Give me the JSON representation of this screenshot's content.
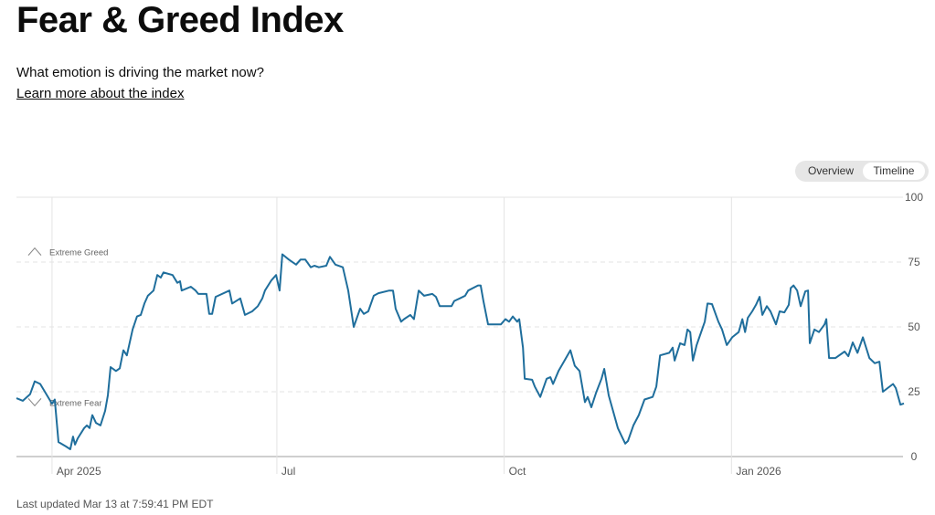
{
  "header": {
    "title": "Fear & Greed Index",
    "subtitle": "What emotion is driving the market now?",
    "learn_link": "Learn more about the index"
  },
  "toggle": {
    "options": [
      "Overview",
      "Timeline"
    ],
    "selected": "Timeline"
  },
  "footer": {
    "updated": "Last updated Mar 13 at 7:59:41 PM EDT"
  },
  "colors": {
    "line": "#1f6e9c",
    "grid": "#e3e3e3",
    "axis": "#555555"
  },
  "chart_data": {
    "type": "line",
    "title": "Fear & Greed Index",
    "x_unit": "days since Apr 1 2025",
    "xlim": [
      -14.4,
      344.8
    ],
    "ylim": [
      0,
      100
    ],
    "y_ticks": [
      0,
      25,
      50,
      75,
      100
    ],
    "x_ticks": [
      {
        "day": 0,
        "label": "Apr 2025"
      },
      {
        "day": 91,
        "label": "Jul"
      },
      {
        "day": 183,
        "label": "Oct"
      },
      {
        "day": 275,
        "label": "Jan 2026"
      }
    ],
    "annotations": [
      {
        "label": "Extreme Greed",
        "value": 79,
        "icon": "chevron-up"
      },
      {
        "label": "Extreme Fear",
        "value": 21,
        "icon": "chevron-down"
      }
    ],
    "series": [
      {
        "name": "Fear & Greed Index",
        "points": [
          [
            -14.4,
            22.5
          ],
          [
            -11.8,
            21.5
          ],
          [
            -8.9,
            24
          ],
          [
            -7,
            29
          ],
          [
            -4.8,
            28
          ],
          [
            0,
            20.4
          ],
          [
            1.1,
            22
          ],
          [
            2.6,
            5.6
          ],
          [
            5.6,
            3.9
          ],
          [
            7.4,
            2.8
          ],
          [
            8.5,
            7.7
          ],
          [
            9.3,
            4.6
          ],
          [
            10.4,
            7
          ],
          [
            13,
            11
          ],
          [
            14.1,
            12
          ],
          [
            15.2,
            11
          ],
          [
            16.3,
            16
          ],
          [
            17.8,
            13
          ],
          [
            19.6,
            12
          ],
          [
            21.5,
            17.6
          ],
          [
            22.6,
            23.6
          ],
          [
            23.7,
            34.5
          ],
          [
            25.9,
            33
          ],
          [
            27.4,
            34
          ],
          [
            28.9,
            41
          ],
          [
            30.3,
            39
          ],
          [
            32.6,
            49
          ],
          [
            34.4,
            54
          ],
          [
            35.9,
            54.6
          ],
          [
            37.4,
            59
          ],
          [
            38.8,
            62
          ],
          [
            41.1,
            64
          ],
          [
            42.6,
            70
          ],
          [
            44,
            69
          ],
          [
            45.1,
            71
          ],
          [
            48.8,
            70
          ],
          [
            50.7,
            67
          ],
          [
            51.8,
            67.6
          ],
          [
            52.5,
            64
          ],
          [
            56.2,
            65.5
          ],
          [
            58.1,
            64
          ],
          [
            59.2,
            62.7
          ],
          [
            62.5,
            62.7
          ],
          [
            63.6,
            55
          ],
          [
            64.8,
            55
          ],
          [
            66.2,
            61.6
          ],
          [
            71.8,
            64
          ],
          [
            72.9,
            59
          ],
          [
            76.2,
            61
          ],
          [
            78.1,
            54.6
          ],
          [
            81,
            56
          ],
          [
            83.3,
            58
          ],
          [
            85.1,
            61
          ],
          [
            86.2,
            64
          ],
          [
            88.8,
            68
          ],
          [
            90.7,
            70
          ],
          [
            92.1,
            64
          ],
          [
            93.2,
            78
          ],
          [
            95.8,
            76
          ],
          [
            98.8,
            74
          ],
          [
            100.6,
            76
          ],
          [
            102.5,
            76
          ],
          [
            104.7,
            73
          ],
          [
            106.2,
            73.6
          ],
          [
            108,
            73
          ],
          [
            111,
            73.6
          ],
          [
            112.5,
            77
          ],
          [
            114.7,
            74
          ],
          [
            117.7,
            73
          ],
          [
            119.9,
            64
          ],
          [
            122.1,
            50
          ],
          [
            123.2,
            53
          ],
          [
            124.7,
            57
          ],
          [
            126.2,
            55
          ],
          [
            128,
            56
          ],
          [
            130.2,
            62
          ],
          [
            132.1,
            63
          ],
          [
            136.5,
            64
          ],
          [
            138,
            64
          ],
          [
            139.1,
            57
          ],
          [
            141.3,
            52
          ],
          [
            142.5,
            53
          ],
          [
            145,
            54.6
          ],
          [
            146.5,
            53
          ],
          [
            148.4,
            64
          ],
          [
            150.6,
            62
          ],
          [
            153.9,
            62.7
          ],
          [
            155.4,
            61.6
          ],
          [
            156.9,
            58
          ],
          [
            161.7,
            58
          ],
          [
            162.8,
            60
          ],
          [
            165,
            61
          ],
          [
            167.2,
            62
          ],
          [
            168.4,
            64
          ],
          [
            172.4,
            66
          ],
          [
            173.5,
            66
          ],
          [
            174.6,
            60
          ],
          [
            176.5,
            51
          ],
          [
            178.7,
            51
          ],
          [
            181.7,
            51
          ],
          [
            183.5,
            53
          ],
          [
            185,
            52
          ],
          [
            186.5,
            54
          ],
          [
            188.3,
            52
          ],
          [
            189.1,
            53
          ],
          [
            190.6,
            42
          ],
          [
            191.3,
            30
          ],
          [
            194.3,
            29.6
          ],
          [
            195.4,
            27
          ],
          [
            197.6,
            23
          ],
          [
            200.2,
            30
          ],
          [
            201.7,
            30.6
          ],
          [
            202.8,
            28
          ],
          [
            205,
            33
          ],
          [
            206.8,
            36
          ],
          [
            209.8,
            41
          ],
          [
            211.6,
            35
          ],
          [
            213.5,
            33
          ],
          [
            215.7,
            21
          ],
          [
            216.8,
            23
          ],
          [
            218.3,
            19
          ],
          [
            220.2,
            24.6
          ],
          [
            222.4,
            30
          ],
          [
            223.5,
            33.8
          ],
          [
            225.3,
            23.6
          ],
          [
            229,
            11
          ],
          [
            230.5,
            8
          ],
          [
            232,
            5
          ],
          [
            233.1,
            6
          ],
          [
            235.3,
            12
          ],
          [
            237.5,
            16
          ],
          [
            239.8,
            22
          ],
          [
            243.1,
            23
          ],
          [
            244.6,
            27
          ],
          [
            246.1,
            39
          ],
          [
            249.8,
            40
          ],
          [
            251.2,
            42
          ],
          [
            252,
            37
          ],
          [
            254.2,
            43.7
          ],
          [
            256,
            43
          ],
          [
            257.2,
            49
          ],
          [
            258.3,
            48
          ],
          [
            259.4,
            37
          ],
          [
            260.9,
            43
          ],
          [
            264.2,
            52
          ],
          [
            265.3,
            59
          ],
          [
            267.1,
            58.8
          ],
          [
            269.7,
            52
          ],
          [
            271.2,
            49
          ],
          [
            273.1,
            43
          ],
          [
            275.3,
            46
          ],
          [
            277.9,
            48
          ],
          [
            279.4,
            53
          ],
          [
            280.5,
            48
          ],
          [
            281.6,
            53.5
          ],
          [
            283.4,
            56
          ],
          [
            284.9,
            58.5
          ],
          [
            286.4,
            61.6
          ],
          [
            287.5,
            54.6
          ],
          [
            289.3,
            58
          ],
          [
            290.8,
            56
          ],
          [
            293,
            51
          ],
          [
            294.5,
            56
          ],
          [
            296.4,
            55.6
          ],
          [
            298.2,
            58.5
          ],
          [
            299,
            65
          ],
          [
            300.1,
            66
          ],
          [
            301.6,
            64
          ],
          [
            303,
            58
          ],
          [
            304.9,
            63.7
          ],
          [
            306,
            64
          ],
          [
            306.7,
            43.7
          ],
          [
            308.6,
            49
          ],
          [
            310.4,
            48
          ],
          [
            312.7,
            51
          ],
          [
            313.4,
            53
          ],
          [
            314.5,
            38
          ],
          [
            317.1,
            38
          ],
          [
            320.8,
            40.5
          ],
          [
            322.3,
            38.7
          ],
          [
            324.1,
            44
          ],
          [
            326,
            40
          ],
          [
            328.2,
            46
          ],
          [
            330.8,
            38
          ],
          [
            333,
            36
          ],
          [
            334.9,
            36.6
          ],
          [
            336.3,
            25
          ],
          [
            338.2,
            26.4
          ],
          [
            340.4,
            28
          ],
          [
            341.5,
            26.4
          ],
          [
            343.4,
            20
          ],
          [
            344.8,
            20.5
          ]
        ]
      }
    ]
  }
}
